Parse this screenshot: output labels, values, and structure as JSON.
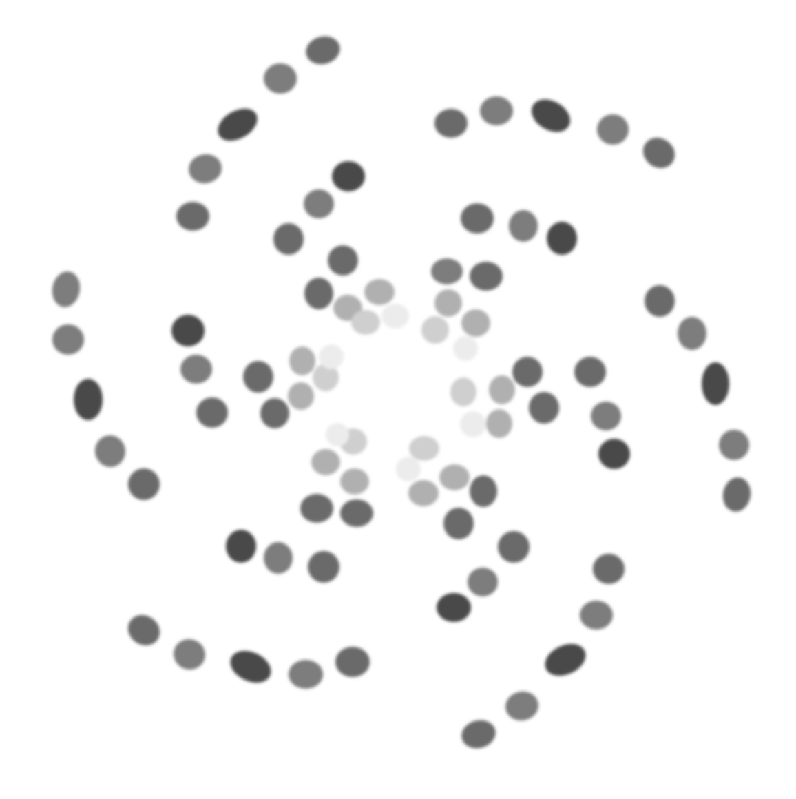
{
  "colors": {
    "background": "#ffffff",
    "dark": "#484848",
    "medium": "#6a6a6a",
    "mid": "#7d7d7d",
    "light": "#b0b0b0",
    "pale": "#cfcfcf",
    "faint": "#ececec"
  }
}
